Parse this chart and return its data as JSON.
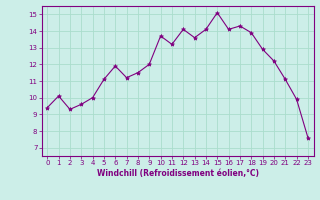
{
  "x": [
    0,
    1,
    2,
    3,
    4,
    5,
    6,
    7,
    8,
    9,
    10,
    11,
    12,
    13,
    14,
    15,
    16,
    17,
    18,
    19,
    20,
    21,
    22,
    23
  ],
  "y": [
    9.4,
    10.1,
    9.3,
    9.6,
    10.0,
    11.1,
    11.9,
    11.2,
    11.5,
    12.0,
    13.7,
    13.2,
    14.1,
    13.6,
    14.1,
    15.1,
    14.1,
    14.3,
    13.9,
    12.9,
    12.2,
    11.1,
    9.9,
    7.6
  ],
  "line_color": "#800080",
  "marker": "*",
  "marker_size": 3,
  "bg_color": "#cceee8",
  "grid_color": "#aaddcc",
  "xlabel": "Windchill (Refroidissement éolien,°C)",
  "xlim": [
    -0.5,
    23.5
  ],
  "ylim": [
    6.5,
    15.5
  ],
  "yticks": [
    7,
    8,
    9,
    10,
    11,
    12,
    13,
    14,
    15
  ],
  "xticks": [
    0,
    1,
    2,
    3,
    4,
    5,
    6,
    7,
    8,
    9,
    10,
    11,
    12,
    13,
    14,
    15,
    16,
    17,
    18,
    19,
    20,
    21,
    22,
    23
  ],
  "tick_color": "#800080",
  "label_color": "#800080",
  "axis_color": "#800080",
  "spine_color": "#800080"
}
